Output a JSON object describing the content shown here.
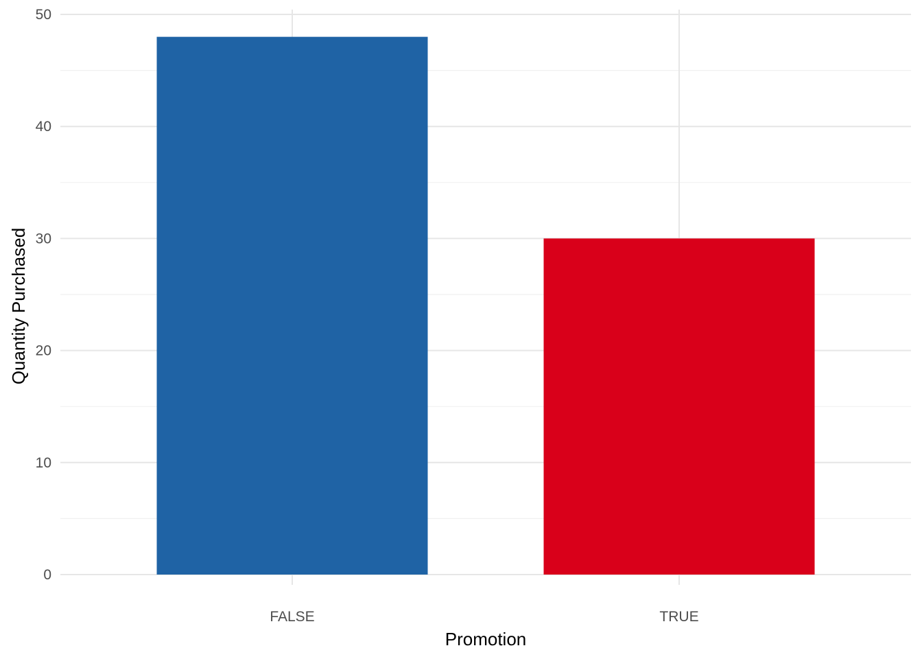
{
  "chart_data": {
    "type": "bar",
    "categories": [
      "FALSE",
      "TRUE"
    ],
    "values": [
      48,
      30
    ],
    "colors": [
      "#1f63a5",
      "#d9001a"
    ],
    "xlabel": "Promotion",
    "ylabel": "Quantity Purchased",
    "ylim": [
      0,
      50
    ],
    "yticks": [
      0,
      10,
      20,
      30,
      40,
      50
    ],
    "grid": true,
    "legend": "none"
  }
}
